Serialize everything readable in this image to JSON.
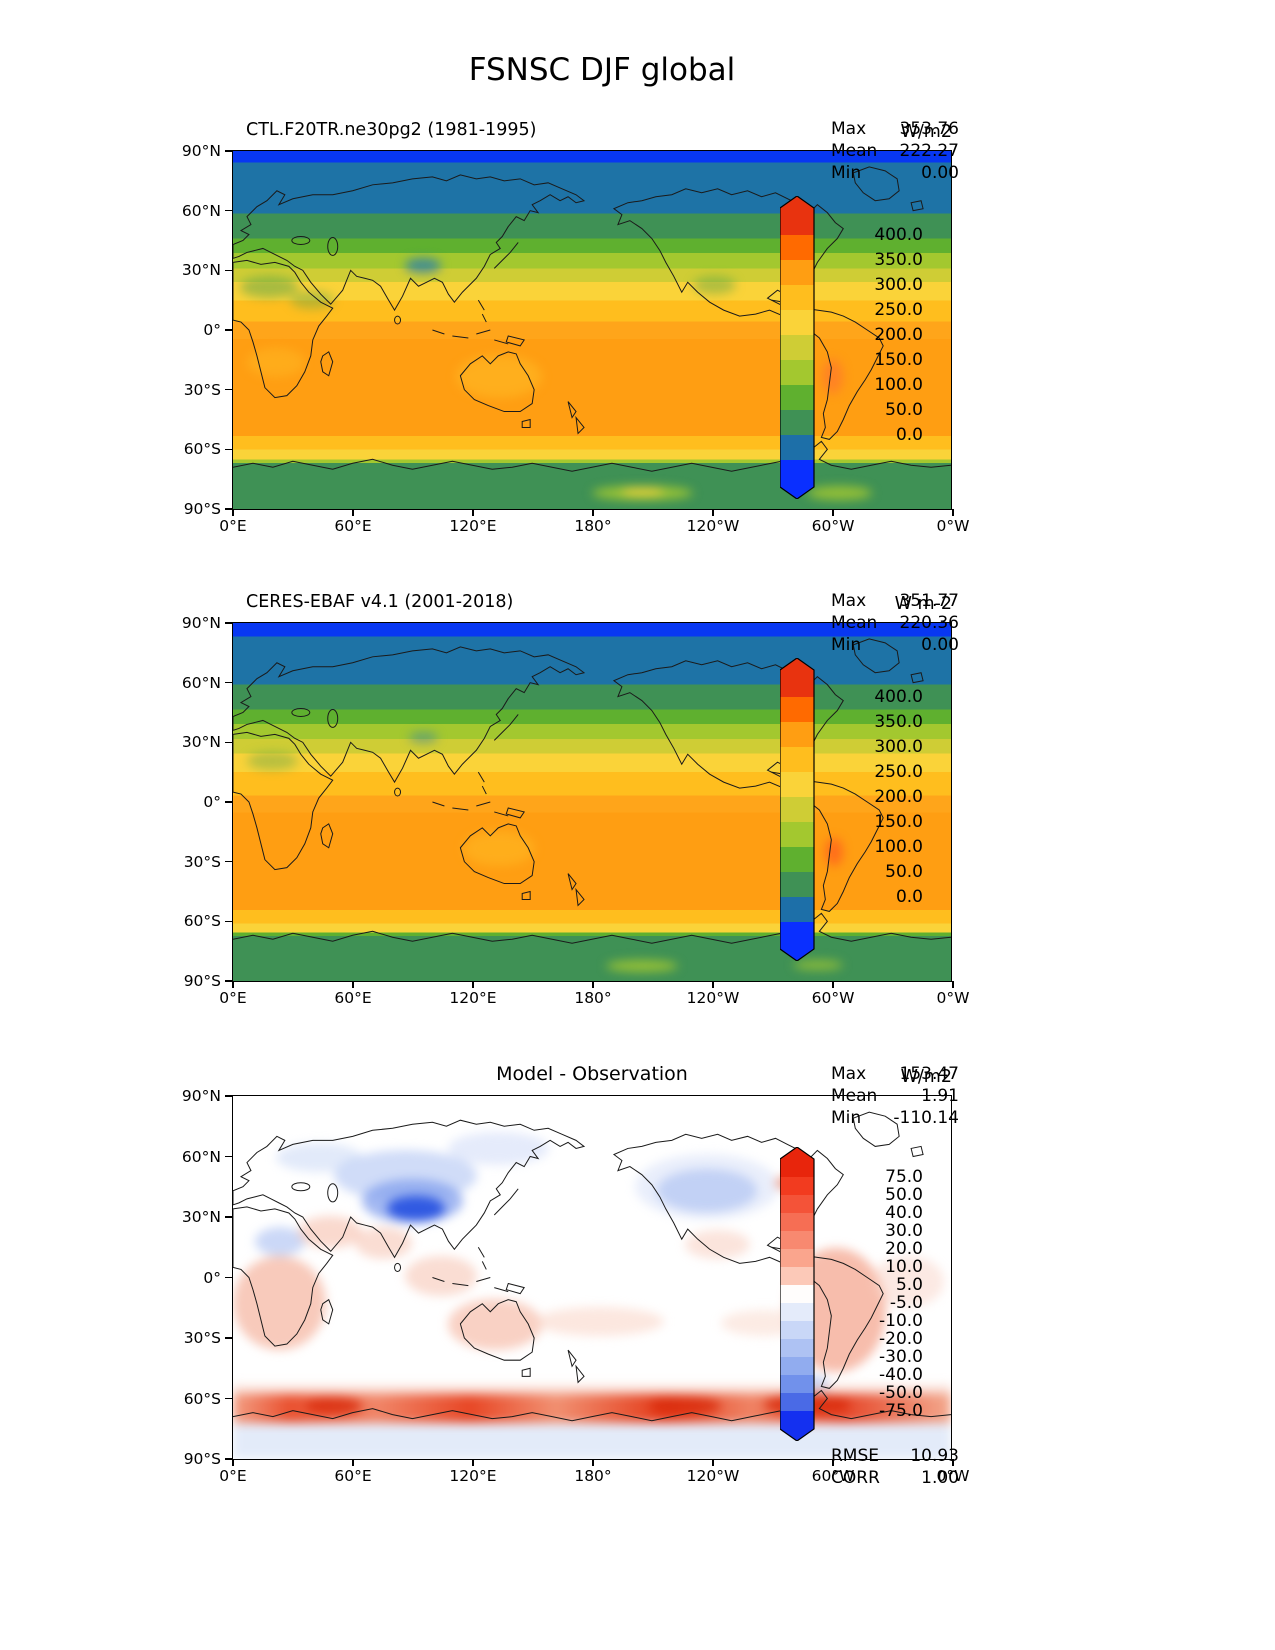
{
  "figure_title": "FSNSC DJF global",
  "axes": {
    "y_ticks": [
      "90°N",
      "60°N",
      "30°N",
      "0°",
      "30°S",
      "60°S",
      "90°S"
    ],
    "x_ticks": [
      "0°E",
      "60°E",
      "120°E",
      "180°",
      "120°W",
      "60°W",
      "0°W"
    ]
  },
  "panels": [
    {
      "id": "model",
      "title": "CTL.F20TR.ne30pg2 (1981-1995)",
      "units": "W/m2",
      "stats": [
        {
          "label": "Max",
          "value": "353.76"
        },
        {
          "label": "Mean",
          "value": "222.27"
        },
        {
          "label": "Min",
          "value": "0.00"
        }
      ],
      "bands": [
        {
          "c": "#0837F2",
          "to": 3.2
        },
        {
          "c": "#1E73A6",
          "to": 17.5
        },
        {
          "c": "#3F9155",
          "to": 24.5
        },
        {
          "c": "#5FB02F",
          "to": 28.5
        },
        {
          "c": "#A3C82F",
          "to": 32.8
        },
        {
          "c": "#CFCD35",
          "to": 36.6
        },
        {
          "c": "#FAD339",
          "to": 41.8
        },
        {
          "c": "#FFBE1E",
          "to": 47.6
        },
        {
          "c": "#FFA51A",
          "to": 52.5
        },
        {
          "c": "#FF9E12",
          "to": 79.6
        },
        {
          "c": "#FFBE1E",
          "to": 83.4
        },
        {
          "c": "#FAD339",
          "to": 86.2
        },
        {
          "c": "#A3C82F",
          "to": 87.2
        },
        {
          "c": "#3F9155",
          "to": 100
        }
      ],
      "colorbar": {
        "tip": 12,
        "cap": 27,
        "seg": 25,
        "segments": [
          "#E8330F",
          "#FF6A00",
          "#FF9E12",
          "#FFBE1E",
          "#FAD339",
          "#CFCD35",
          "#A3C82F",
          "#5FB02F",
          "#3F9155",
          "#1D6FA8",
          "#0A2FFF"
        ],
        "labels": [
          "400.0",
          "350.0",
          "300.0",
          "250.0",
          "200.0",
          "150.0",
          "100.0",
          "50.0",
          "0.0"
        ]
      }
    },
    {
      "id": "obs",
      "title": "CERES-EBAF v4.1 (2001-2018)",
      "units": "W m-2",
      "stats": [
        {
          "label": "Max",
          "value": "351.77"
        },
        {
          "label": "Mean",
          "value": "220.36"
        },
        {
          "label": "Min",
          "value": "0.00"
        }
      ],
      "bands": [
        {
          "c": "#0837F2",
          "to": 3.8
        },
        {
          "c": "#1E73A6",
          "to": 17.2
        },
        {
          "c": "#3F9155",
          "to": 24.2
        },
        {
          "c": "#5FB02F",
          "to": 28.2
        },
        {
          "c": "#A3C82F",
          "to": 32.4
        },
        {
          "c": "#CFCD35",
          "to": 36.4
        },
        {
          "c": "#FAD339",
          "to": 41.6
        },
        {
          "c": "#FFBE1E",
          "to": 48.2
        },
        {
          "c": "#FFA51A",
          "to": 53.0
        },
        {
          "c": "#FF9E12",
          "to": 80.2
        },
        {
          "c": "#FFBE1E",
          "to": 84.0
        },
        {
          "c": "#FAD339",
          "to": 86.4
        },
        {
          "c": "#5FB02F",
          "to": 87.4
        },
        {
          "c": "#3F9155",
          "to": 100
        }
      ],
      "colorbar": {
        "tip": 12,
        "cap": 27,
        "seg": 25,
        "segments": [
          "#E8330F",
          "#FF6A00",
          "#FF9E12",
          "#FFBE1E",
          "#FAD339",
          "#CFCD35",
          "#A3C82F",
          "#5FB02F",
          "#3F9155",
          "#1D6FA8",
          "#0A2FFF"
        ],
        "labels": [
          "400.0",
          "350.0",
          "300.0",
          "250.0",
          "200.0",
          "150.0",
          "100.0",
          "50.0",
          "0.0"
        ]
      }
    },
    {
      "id": "diff",
      "title": "Model - Observation",
      "units": "W/m2",
      "stats": [
        {
          "label": "Max",
          "value": "153.47"
        },
        {
          "label": "Mean",
          "value": "1.91"
        },
        {
          "label": "Min",
          "value": "-110.14"
        }
      ],
      "extra_stats": [
        {
          "label": "RMSE",
          "value": "10.93"
        },
        {
          "label": "CORR",
          "value": "1.00"
        }
      ],
      "colorbar": {
        "tip": 12,
        "cap": 18,
        "seg": 18,
        "segments": [
          "#E8250C",
          "#F23B1F",
          "#F45338",
          "#F66E54",
          "#F88970",
          "#FAA58D",
          "#FCC9B8",
          "#FFFDFC",
          "#E4EBFA",
          "#C9D7F7",
          "#AEC2F3",
          "#91ACEF",
          "#7191EB",
          "#4A6AE6",
          "#1430F0"
        ],
        "labels": [
          "75.0",
          "50.0",
          "40.0",
          "30.0",
          "20.0",
          "10.0",
          "5.0",
          "-5.0",
          "-10.0",
          "-20.0",
          "-30.0",
          "-40.0",
          "-50.0",
          "-75.0"
        ]
      }
    }
  ],
  "chart_data": [
    {
      "type": "heatmap",
      "subtype": "global-map-filled-contour",
      "title": "CTL.F20TR.ne30pg2 (1981-1995)",
      "variable": "FSNSC",
      "season": "DJF",
      "region": "global",
      "units": "W/m2",
      "projection": "equirectangular, longitudes 0E to 0W centered on 180",
      "stats": {
        "max": 353.76,
        "mean": 222.27,
        "min": 0.0
      },
      "contour_levels": [
        0,
        50,
        100,
        150,
        200,
        250,
        300,
        350,
        400
      ],
      "colorbar_colors": [
        "#0A2FFF",
        "#1D6FA8",
        "#3F9155",
        "#5FB02F",
        "#A3C82F",
        "#CFCD35",
        "#FAD339",
        "#FFBE1E",
        "#FF9E12",
        "#FF6A00",
        "#E8330F"
      ],
      "zonal_profile_estimate": {
        "lat": [
          90,
          80,
          70,
          60,
          50,
          40,
          30,
          20,
          10,
          0,
          -10,
          -20,
          -30,
          -40,
          -50,
          -60,
          -65,
          -70,
          -80,
          -90
        ],
        "value": [
          0,
          0,
          20,
          45,
          75,
          115,
          165,
          215,
          255,
          285,
          310,
          325,
          330,
          330,
          320,
          290,
          255,
          105,
          80,
          75
        ]
      }
    },
    {
      "type": "heatmap",
      "subtype": "global-map-filled-contour",
      "title": "CERES-EBAF v4.1 (2001-2018)",
      "variable": "FSNSC",
      "season": "DJF",
      "region": "global",
      "units": "W m-2",
      "projection": "equirectangular, longitudes 0E to 0W centered on 180",
      "stats": {
        "max": 351.77,
        "mean": 220.36,
        "min": 0.0
      },
      "contour_levels": [
        0,
        50,
        100,
        150,
        200,
        250,
        300,
        350,
        400
      ],
      "colorbar_colors": [
        "#0A2FFF",
        "#1D6FA8",
        "#3F9155",
        "#5FB02F",
        "#A3C82F",
        "#CFCD35",
        "#FAD339",
        "#FFBE1E",
        "#FF9E12",
        "#FF6A00",
        "#E8330F"
      ],
      "zonal_profile_estimate": {
        "lat": [
          90,
          80,
          70,
          60,
          50,
          40,
          30,
          20,
          10,
          0,
          -10,
          -20,
          -30,
          -40,
          -50,
          -60,
          -65,
          -70,
          -80,
          -90
        ],
        "value": [
          0,
          0,
          20,
          45,
          75,
          110,
          160,
          210,
          255,
          290,
          310,
          325,
          330,
          330,
          320,
          285,
          250,
          100,
          80,
          75
        ]
      }
    },
    {
      "type": "heatmap",
      "subtype": "global-map-difference",
      "title": "Model - Observation",
      "units": "W/m2",
      "stats": {
        "max": 153.47,
        "mean": 1.91,
        "min": -110.14,
        "rmse": 10.93,
        "corr": 1.0
      },
      "contour_levels": [
        -75,
        -50,
        -40,
        -30,
        -20,
        -10,
        -5,
        5,
        10,
        20,
        30,
        40,
        50,
        75
      ],
      "colorbar_colors": [
        "#1430F0",
        "#4A6AE6",
        "#7191EB",
        "#91ACEF",
        "#AEC2F3",
        "#C9D7F7",
        "#E4EBFA",
        "#FFFDFC",
        "#FCC9B8",
        "#FAA58D",
        "#F88970",
        "#F66E54",
        "#F45338",
        "#F23B1F",
        "#E8250C"
      ],
      "notable_features": [
        {
          "region": "Tibetan Plateau and Central Asia",
          "sign": "negative",
          "approx_range_wm2": [
            -75,
            -20
          ]
        },
        {
          "region": "Siberia and northern Eurasia",
          "sign": "negative",
          "approx_range_wm2": [
            -20,
            -5
          ]
        },
        {
          "region": "Central North America",
          "sign": "negative",
          "approx_range_wm2": [
            -30,
            -5
          ]
        },
        {
          "region": "West Africa near 15N",
          "sign": "negative",
          "approx_range_wm2": [
            -30,
            -10
          ]
        },
        {
          "region": "Tropical land: South America, southern Africa, Australia, India, SE Asia",
          "sign": "positive",
          "approx_range_wm2": [
            5,
            30
          ]
        },
        {
          "region": "Antarctic coastal band near 60-70S",
          "sign": "positive",
          "approx_range_wm2": [
            30,
            153
          ]
        },
        {
          "region": "Southern Ocean / Antarctic interior south of the band",
          "sign": "weak negative",
          "approx_range_wm2": [
            -10,
            0
          ]
        }
      ]
    }
  ]
}
